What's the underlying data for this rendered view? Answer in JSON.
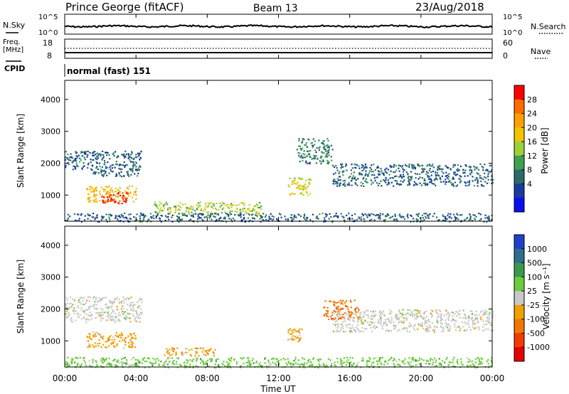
{
  "header": {
    "station": "Prince George (fitACF)",
    "beam": "Beam 13",
    "date": "23/Aug/2018"
  },
  "nsky_panel": {
    "left_label": "N.Sky",
    "right_label": "N.Search",
    "y_ticks": [
      "10^5",
      "10^0"
    ],
    "right_ticks": [
      "10^5",
      "10^0"
    ]
  },
  "freq_panel": {
    "left_label_line1": "Freq.",
    "left_label_line2": "[MHz]",
    "y_ticks": [
      "18",
      "8"
    ],
    "right_label": "Nave",
    "right_ticks": [
      "60",
      "0"
    ]
  },
  "cpid": {
    "label": "CPID",
    "value": "normal (fast) 151"
  },
  "power_panel": {
    "ylabel": "Slant Range [km]",
    "y_ticks": [
      "4000",
      "3000",
      "2000",
      "1000"
    ],
    "colorbar_label": "Power [dB]",
    "colorbar_ticks": [
      "28",
      "24",
      "20",
      "16",
      "12",
      "8",
      "4"
    ],
    "colors": [
      "#ff0000",
      "#ff6a00",
      "#ff9f00",
      "#f3c400",
      "#9bd237",
      "#40a050",
      "#2a6a6a",
      "#1a3aa0",
      "#0a10f0"
    ]
  },
  "velocity_panel": {
    "ylabel": "Slant Range [km]",
    "y_ticks": [
      "4000",
      "3000",
      "2000",
      "1000"
    ],
    "colorbar_label": "Velocity [m s⁻¹]",
    "colorbar_ticks": [
      "1000",
      "500",
      "100",
      "25",
      "-25",
      "-100",
      "-500",
      "-1000"
    ],
    "colors": [
      "#2040c8",
      "#2e6e8e",
      "#3a9a4a",
      "#6acc3a",
      "#c8c8c8",
      "#f0a000",
      "#f07800",
      "#f03c00",
      "#e80000"
    ]
  },
  "x_axis": {
    "ticks": [
      "00:00",
      "04:00",
      "08:00",
      "12:00",
      "16:00",
      "20:00",
      "00:00"
    ],
    "label": "Time UT"
  },
  "chart_data": {
    "type": "heatmap",
    "x_range_hours": [
      0,
      24
    ],
    "y_range_km": [
      180,
      4600
    ],
    "power_regions_db": [
      {
        "t": [
          0.0,
          1.8
        ],
        "r": [
          1800,
          2400
        ],
        "value": 6
      },
      {
        "t": [
          1.5,
          4.3
        ],
        "r": [
          1600,
          2400
        ],
        "value": 6
      },
      {
        "t": [
          1.2,
          4.0
        ],
        "r": [
          800,
          1300
        ],
        "value": 18
      },
      {
        "t": [
          2.0,
          3.6
        ],
        "r": [
          750,
          1100
        ],
        "value": 28
      },
      {
        "t": [
          5.0,
          11.0
        ],
        "r": [
          400,
          800
        ],
        "value": 14
      },
      {
        "t": [
          12.5,
          13.8
        ],
        "r": [
          1000,
          1600
        ],
        "value": 16
      },
      {
        "t": [
          13.0,
          15.0
        ],
        "r": [
          2000,
          2800
        ],
        "value": 8
      },
      {
        "t": [
          15.0,
          24.0
        ],
        "r": [
          1300,
          2000
        ],
        "value": 6
      },
      {
        "t": [
          0.0,
          24.0
        ],
        "r": [
          180,
          450
        ],
        "value": 6
      }
    ],
    "velocity_regions_ms": [
      {
        "t": [
          0.0,
          4.3
        ],
        "r": [
          1600,
          2400
        ],
        "value": 0
      },
      {
        "t": [
          1.2,
          4.0
        ],
        "r": [
          800,
          1300
        ],
        "value": -100
      },
      {
        "t": [
          5.5,
          8.5
        ],
        "r": [
          550,
          800
        ],
        "value": -100
      },
      {
        "t": [
          12.5,
          13.3
        ],
        "r": [
          1000,
          1400
        ],
        "value": -100
      },
      {
        "t": [
          14.5,
          16.5
        ],
        "r": [
          1700,
          2300
        ],
        "value": -500
      },
      {
        "t": [
          15.0,
          24.0
        ],
        "r": [
          1300,
          2000
        ],
        "value": 0
      },
      {
        "t": [
          0.0,
          24.0
        ],
        "r": [
          180,
          500
        ],
        "value": 100
      }
    ]
  }
}
